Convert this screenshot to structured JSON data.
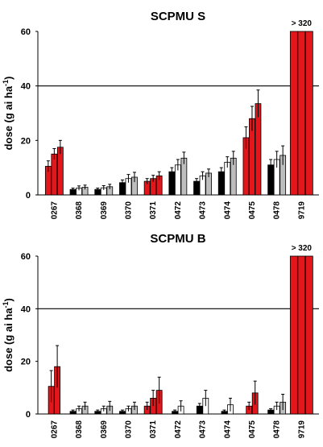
{
  "colors": {
    "black": "#000000",
    "red": "#e3161b",
    "white": "#ffffff",
    "gray": "#bdbdbd"
  },
  "chart_data": [
    {
      "type": "bar",
      "title": "SCPMU S",
      "ylabel": "dose (g ai ha",
      "ylabel_sup": "-1",
      "ylabel_end": ")",
      "ylim": [
        0,
        60
      ],
      "yticks": [
        "0",
        "20",
        "40",
        "60"
      ],
      "reference_line": 40,
      "overflow_label": "> 320",
      "groups": [
        {
          "category": "0267",
          "bars": [
            {
              "c": "red",
              "v": 10.5,
              "e": 2.0
            },
            {
              "c": "red",
              "v": 15,
              "e": 2.0
            },
            {
              "c": "red",
              "v": 17.5,
              "e": 2.5
            }
          ]
        },
        {
          "category": "0368",
          "bars": [
            {
              "c": "black",
              "v": 2,
              "e": 0.5
            },
            {
              "c": "white",
              "v": 2.5,
              "e": 0.8
            },
            {
              "c": "gray",
              "v": 2.8,
              "e": 0.8
            }
          ]
        },
        {
          "category": "0369",
          "bars": [
            {
              "c": "black",
              "v": 2,
              "e": 0.5
            },
            {
              "c": "white",
              "v": 2.6,
              "e": 0.8
            },
            {
              "c": "gray",
              "v": 3,
              "e": 0.9
            }
          ]
        },
        {
          "category": "0370",
          "bars": [
            {
              "c": "black",
              "v": 4.5,
              "e": 1.0
            },
            {
              "c": "white",
              "v": 6,
              "e": 1.5
            },
            {
              "c": "gray",
              "v": 6.5,
              "e": 1.8
            }
          ]
        },
        {
          "category": "0371",
          "bars": [
            {
              "c": "red",
              "v": 5,
              "e": 1.0
            },
            {
              "c": "red",
              "v": 6,
              "e": 1.2
            },
            {
              "c": "red",
              "v": 7,
              "e": 1.5
            }
          ]
        },
        {
          "category": "0472",
          "bars": [
            {
              "c": "black",
              "v": 8.5,
              "e": 1.5
            },
            {
              "c": "white",
              "v": 11,
              "e": 2.0
            },
            {
              "c": "gray",
              "v": 13.5,
              "e": 2.2
            }
          ]
        },
        {
          "category": "0473",
          "bars": [
            {
              "c": "black",
              "v": 5,
              "e": 1.0
            },
            {
              "c": "white",
              "v": 7,
              "e": 1.5
            },
            {
              "c": "gray",
              "v": 8,
              "e": 1.5
            }
          ]
        },
        {
          "category": "0474",
          "bars": [
            {
              "c": "black",
              "v": 8.5,
              "e": 1.5
            },
            {
              "c": "white",
              "v": 12,
              "e": 2.0
            },
            {
              "c": "gray",
              "v": 13.5,
              "e": 2.5
            }
          ]
        },
        {
          "category": "0475",
          "bars": [
            {
              "c": "red",
              "v": 21,
              "e": 4.0
            },
            {
              "c": "red",
              "v": 28,
              "e": 4.5
            },
            {
              "c": "red",
              "v": 33.5,
              "e": 5.0
            }
          ]
        },
        {
          "category": "0478",
          "bars": [
            {
              "c": "black",
              "v": 11,
              "e": 2.0
            },
            {
              "c": "white",
              "v": 13,
              "e": 3.0
            },
            {
              "c": "gray",
              "v": 14.5,
              "e": 3.5
            }
          ]
        },
        {
          "category": "9719",
          "overflow": true,
          "bars": [
            {
              "c": "red",
              "v": 60,
              "e": 0
            },
            {
              "c": "red",
              "v": 60,
              "e": 0
            },
            {
              "c": "red",
              "v": 60,
              "e": 0
            }
          ]
        }
      ]
    },
    {
      "type": "bar",
      "title": "SCPMU B",
      "ylabel": "dose (g ai ha",
      "ylabel_sup": "-1",
      "ylabel_end": ")",
      "ylim": [
        0,
        60
      ],
      "yticks": [
        "0",
        "20",
        "40",
        "60"
      ],
      "reference_line": 40,
      "overflow_label": "> 320",
      "groups": [
        {
          "category": "0267",
          "bars": [
            {
              "c": "red",
              "v": 10.5,
              "e": 6.0
            },
            {
              "c": "red",
              "v": 18,
              "e": 8.0
            }
          ]
        },
        {
          "category": "0368",
          "bars": [
            {
              "c": "black",
              "v": 1,
              "e": 0.5
            },
            {
              "c": "white",
              "v": 2,
              "e": 1.0
            },
            {
              "c": "gray",
              "v": 3,
              "e": 1.5
            }
          ]
        },
        {
          "category": "0369",
          "bars": [
            {
              "c": "black",
              "v": 1,
              "e": 0.5
            },
            {
              "c": "white",
              "v": 2,
              "e": 1.0
            },
            {
              "c": "gray",
              "v": 3,
              "e": 1.8
            }
          ]
        },
        {
          "category": "0370",
          "bars": [
            {
              "c": "black",
              "v": 1,
              "e": 0.5
            },
            {
              "c": "white",
              "v": 2,
              "e": 1.0
            },
            {
              "c": "gray",
              "v": 3,
              "e": 1.5
            }
          ]
        },
        {
          "category": "0371",
          "bars": [
            {
              "c": "red",
              "v": 3,
              "e": 1.5
            },
            {
              "c": "red",
              "v": 6,
              "e": 3.0
            },
            {
              "c": "red",
              "v": 9,
              "e": 5.0
            }
          ]
        },
        {
          "category": "0472",
          "bars": [
            {
              "c": "black",
              "v": 1,
              "e": 0.5
            },
            {
              "c": "white",
              "v": 3,
              "e": 2.0
            }
          ]
        },
        {
          "category": "0473",
          "bars": [
            {
              "c": "black",
              "v": 3,
              "e": 1.0
            },
            {
              "c": "white",
              "v": 6,
              "e": 3.0
            }
          ]
        },
        {
          "category": "0474",
          "bars": [
            {
              "c": "black",
              "v": 1,
              "e": 0.5
            },
            {
              "c": "white",
              "v": 3.5,
              "e": 2.5
            }
          ]
        },
        {
          "category": "0475",
          "bars": [
            {
              "c": "red",
              "v": 3,
              "e": 1.5
            },
            {
              "c": "red",
              "v": 8,
              "e": 4.5
            }
          ]
        },
        {
          "category": "0478",
          "bars": [
            {
              "c": "black",
              "v": 1.5,
              "e": 0.5
            },
            {
              "c": "white",
              "v": 3,
              "e": 1.5
            },
            {
              "c": "gray",
              "v": 4.5,
              "e": 3.0
            }
          ]
        },
        {
          "category": "9719",
          "overflow": true,
          "bars": [
            {
              "c": "red",
              "v": 60,
              "e": 0
            },
            {
              "c": "red",
              "v": 60,
              "e": 0
            },
            {
              "c": "red",
              "v": 60,
              "e": 0
            }
          ]
        }
      ]
    }
  ]
}
